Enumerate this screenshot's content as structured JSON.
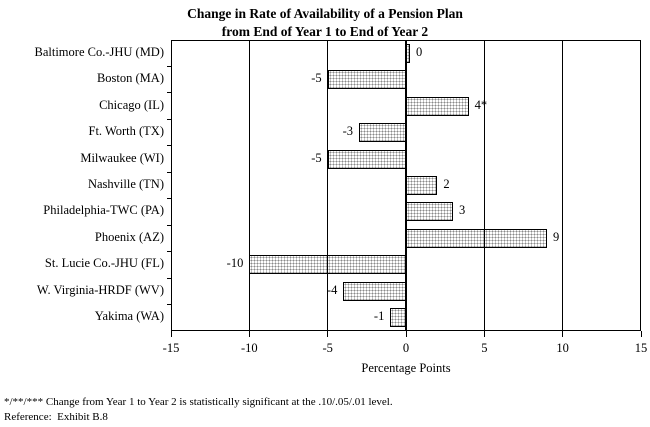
{
  "title": {
    "line1": "Change in Rate of Availability of a Pension Plan",
    "line2": "from End of Year 1 to End of Year 2"
  },
  "chart_data": {
    "type": "bar",
    "orientation": "horizontal",
    "title": "Change in Rate of Availability of a Pension Plan from End of Year 1 to End of Year 2",
    "categories": [
      "Baltimore Co.-JHU (MD)",
      "Boston (MA)",
      "Chicago (IL)",
      "Ft. Worth (TX)",
      "Milwaukee (WI)",
      "Nashville (TN)",
      "Philadelphia-TWC (PA)",
      "Phoenix (AZ)",
      "St. Lucie Co.-JHU (FL)",
      "W. Virginia-HRDF (WV)",
      "Yakima (WA)"
    ],
    "values": [
      0,
      -5,
      4,
      -3,
      -5,
      2,
      3,
      9,
      -10,
      -4,
      -1
    ],
    "bar_labels": [
      "0",
      "-5",
      "4*",
      "-3",
      "-5",
      "2",
      "3",
      "9",
      "-10",
      "-4",
      "-1"
    ],
    "xlabel": "Percentage Points",
    "xlim": [
      -15,
      15
    ],
    "xticks": [
      -15,
      -10,
      -5,
      0,
      5,
      10,
      15
    ],
    "grid": "vertical-lines-at-ticks",
    "legend": "none",
    "styles": {
      "background": "#ffffff",
      "text_color": "#000000",
      "axis_color": "#000000",
      "bar_fill": "#ffffff",
      "bar_dot_color": "#8a8a8a",
      "bar_border": "#000000"
    }
  },
  "footnotes": {
    "significance": "*/**/*** Change from Year 1 to Year 2 is statistically significant at the .10/.05/.01 level.",
    "reference": "Reference:  Exhibit B.8"
  }
}
